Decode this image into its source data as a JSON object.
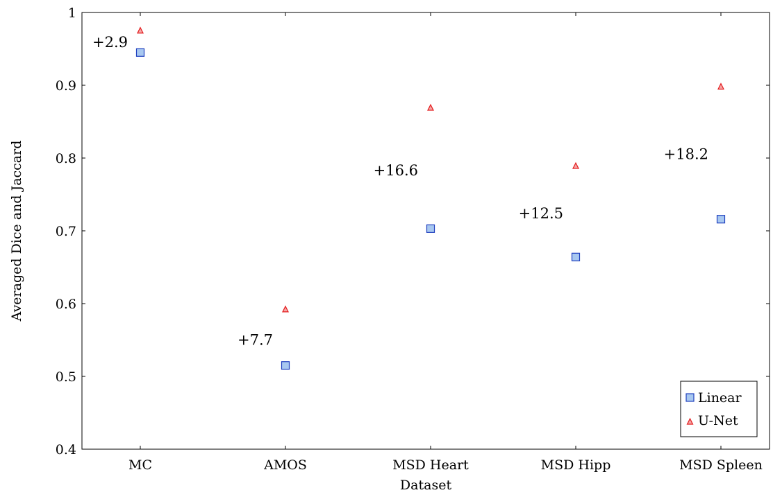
{
  "chart_data": {
    "type": "scatter",
    "categories": [
      "MC",
      "AMOS",
      "MSD Heart",
      "MSD Hipp",
      "MSD Spleen"
    ],
    "series": [
      {
        "name": "Linear",
        "marker": "square",
        "fill": "#a8c8f0",
        "stroke": "#1f3fbf",
        "values": [
          0.945,
          0.515,
          0.703,
          0.664,
          0.716
        ]
      },
      {
        "name": "U-Net",
        "marker": "triangle",
        "fill": "#f4a6a6",
        "stroke": "#e41a1c",
        "values": [
          0.975,
          0.592,
          0.869,
          0.789,
          0.898
        ]
      }
    ],
    "annotations": [
      {
        "category": "MC",
        "text": "+2.9",
        "y": 0.96
      },
      {
        "category": "AMOS",
        "text": "+7.7",
        "y": 0.551
      },
      {
        "category": "MSD Heart",
        "text": "+16.6",
        "y": 0.784
      },
      {
        "category": "MSD Hipp",
        "text": "+12.5",
        "y": 0.725
      },
      {
        "category": "MSD Spleen",
        "text": "+18.2",
        "y": 0.806
      }
    ],
    "xlabel": "Dataset",
    "ylabel": "Averaged Dice and Jaccard",
    "ylim": [
      0.4,
      1.0
    ],
    "yticks": [
      "0.4",
      "0.5",
      "0.6",
      "0.7",
      "0.8",
      "0.9",
      "1"
    ],
    "grid": false,
    "legend_position": "bottom-right"
  }
}
